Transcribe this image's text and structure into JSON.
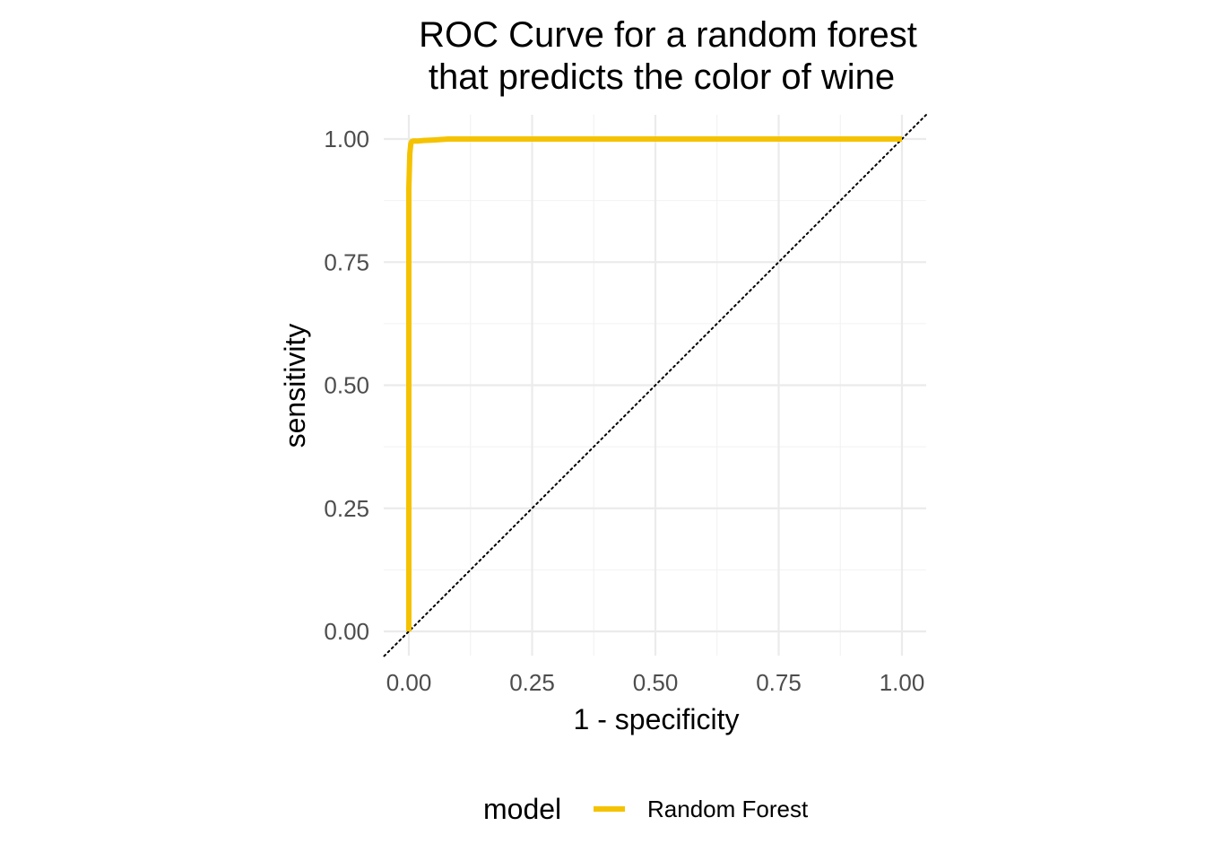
{
  "chart_data": {
    "type": "line",
    "title_lines": [
      "ROC Curve for a random forest",
      "that predicts the color of wine"
    ],
    "xlabel": "1 - specificity",
    "ylabel": "sensitivity",
    "xlim": [
      0,
      1
    ],
    "ylim": [
      0,
      1
    ],
    "x_ticks": [
      0,
      0.25,
      0.5,
      0.75,
      1
    ],
    "y_ticks": [
      0,
      0.25,
      0.5,
      0.75,
      1
    ],
    "x_tick_labels": [
      "0.00",
      "0.25",
      "0.50",
      "0.75",
      "1.00"
    ],
    "y_tick_labels": [
      "0.00",
      "0.25",
      "0.50",
      "0.75",
      "1.00"
    ],
    "grid": true,
    "reference_line": {
      "style": "dotted",
      "color": "#000000",
      "from": [
        0,
        0
      ],
      "to": [
        1,
        1
      ]
    },
    "legend": {
      "title": "model",
      "position": "bottom"
    },
    "series": [
      {
        "name": "Random Forest",
        "color": "#F5C200",
        "x": [
          0.0,
          0.0,
          0.0,
          0.002,
          0.004,
          0.006,
          0.01,
          0.02,
          0.03,
          0.05,
          0.08,
          0.1,
          0.2,
          0.5,
          1.0
        ],
        "y": [
          0.0,
          0.5,
          0.9,
          0.97,
          0.99,
          0.995,
          0.996,
          0.996,
          0.997,
          0.998,
          1.0,
          1.0,
          1.0,
          1.0,
          1.0
        ]
      }
    ]
  }
}
